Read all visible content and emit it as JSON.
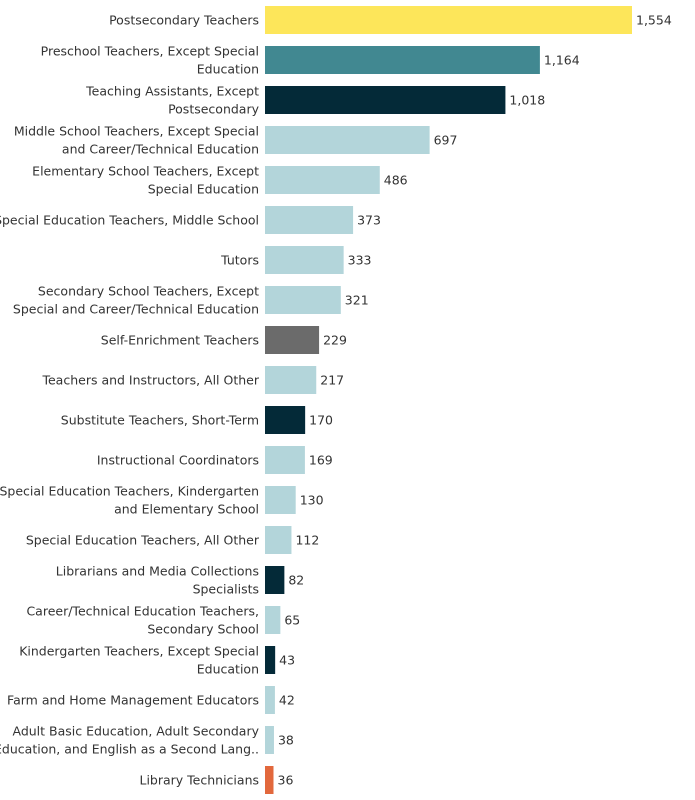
{
  "chart_data": {
    "type": "bar",
    "orientation": "horizontal",
    "title": "",
    "xlabel": "",
    "ylabel": "",
    "grid": false,
    "xlim": [
      0,
      1554
    ],
    "categories": [
      [
        "Postsecondary Teachers"
      ],
      [
        "Preschool Teachers, Except Special",
        "Education"
      ],
      [
        "Teaching Assistants, Except",
        "Postsecondary"
      ],
      [
        "Middle School Teachers, Except Special",
        "and Career/Technical Education"
      ],
      [
        "Elementary School Teachers, Except",
        "Special Education"
      ],
      [
        "Special Education Teachers, Middle School"
      ],
      [
        "Tutors"
      ],
      [
        "Secondary School Teachers, Except",
        "Special and Career/Technical Education"
      ],
      [
        "Self-Enrichment Teachers"
      ],
      [
        "Teachers and Instructors, All Other"
      ],
      [
        "Substitute Teachers, Short-Term"
      ],
      [
        "Instructional Coordinators"
      ],
      [
        "Special Education Teachers, Kindergarten",
        "and Elementary School"
      ],
      [
        "Special Education Teachers, All Other"
      ],
      [
        "Librarians and Media Collections",
        "Specialists"
      ],
      [
        "Career/Technical Education Teachers,",
        "Secondary School"
      ],
      [
        "Kindergarten Teachers, Except Special",
        "Education"
      ],
      [
        "Farm and Home Management Educators"
      ],
      [
        "Adult Basic Education, Adult Secondary",
        "Education, and English as a Second Lang.."
      ],
      [
        "Library Technicians"
      ]
    ],
    "values": [
      1554,
      1164,
      1018,
      697,
      486,
      373,
      333,
      321,
      229,
      217,
      170,
      169,
      130,
      112,
      82,
      65,
      43,
      42,
      38,
      36
    ],
    "value_labels": [
      "1,554",
      "1,164",
      "1,018",
      "697",
      "486",
      "373",
      "333",
      "321",
      "229",
      "217",
      "170",
      "169",
      "130",
      "112",
      "82",
      "65",
      "43",
      "42",
      "38",
      "36"
    ],
    "colors": [
      "#fde65a",
      "#418891",
      "#042a38",
      "#b3d5da",
      "#b3d5da",
      "#b3d5da",
      "#b3d5da",
      "#b3d5da",
      "#6b6b6b",
      "#b3d5da",
      "#042a38",
      "#b3d5da",
      "#b3d5da",
      "#b3d5da",
      "#042a38",
      "#b3d5da",
      "#042a38",
      "#b3d5da",
      "#b3d5da",
      "#e2683c"
    ]
  }
}
